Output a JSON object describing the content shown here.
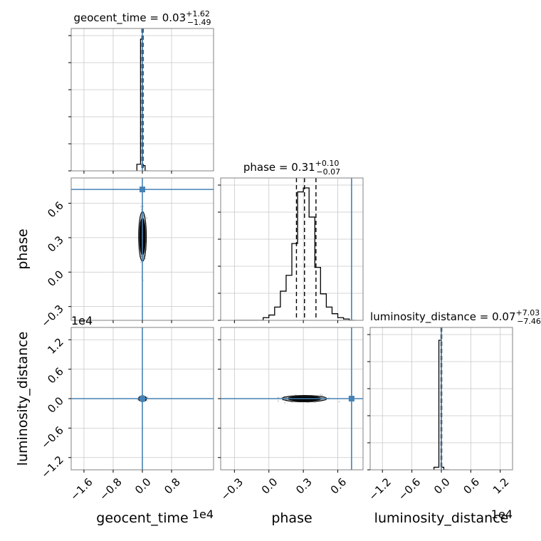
{
  "chart_data": {
    "type": "corner",
    "parameters": [
      "geocent_time",
      "phase",
      "luminosity_distance"
    ],
    "axis_labels": {
      "x": [
        "geocent_time",
        "phase",
        "luminosity_distance"
      ],
      "y": [
        "phase",
        "luminosity_distance"
      ]
    },
    "titles": [
      {
        "param": "geocent_time",
        "prefix": "geocent_time = ",
        "median": "0.03",
        "plus": "+1.62",
        "minus": "−1.49"
      },
      {
        "param": "phase",
        "prefix": "phase = ",
        "median": "0.31",
        "plus": "+0.10",
        "minus": "−0.07"
      },
      {
        "param": "luminosity_distance",
        "prefix": "luminosity_distance = ",
        "median": "0.07",
        "plus": "+7.03",
        "minus": "−7.46"
      }
    ],
    "ranges": {
      "geocent_time": [
        -1.95,
        1.95
      ],
      "phase": [
        -0.42,
        0.82
      ],
      "luminosity_distance": [
        -1.45,
        1.45
      ]
    },
    "offset_labels": {
      "geocent_time": "1e4",
      "luminosity_distance": "1e4"
    },
    "ticks": {
      "geocent_time": {
        "values": [
          -1.6,
          -0.8,
          0.0,
          0.8
        ],
        "labels": [
          "−1.6",
          "−0.8",
          "0.0",
          "0.8"
        ]
      },
      "phase": {
        "values": [
          -0.3,
          0.0,
          0.3,
          0.6
        ],
        "labels": [
          "−0.3",
          "0.0",
          "0.3",
          "0.6"
        ]
      },
      "luminosity_distance": {
        "values": [
          -1.2,
          -0.6,
          0.0,
          0.6,
          1.2
        ],
        "labels": [
          "−1.2",
          "−0.6",
          "0.0",
          "0.6",
          "1.2"
        ]
      }
    },
    "truths": {
      "geocent_time": 0.0,
      "phase": 0.72,
      "luminosity_distance": 0.0
    },
    "quantiles": {
      "geocent_time": [
        -0.012,
        0.003,
        0.019
      ],
      "phase": [
        0.24,
        0.31,
        0.41
      ],
      "luminosity_distance": [
        -0.007,
        0.0007,
        0.0077
      ]
    },
    "histograms": {
      "geocent_time": {
        "bin_edges": [
          -0.15,
          -0.05,
          0.0,
          0.075,
          0.15
        ],
        "counts": [
          0.05,
          1.0,
          0.04,
          0.0
        ]
      },
      "phase": {
        "bin_edges": [
          -0.3,
          -0.25,
          -0.2,
          -0.15,
          -0.1,
          -0.05,
          0.0,
          0.05,
          0.1,
          0.15,
          0.2,
          0.25,
          0.3,
          0.35,
          0.4,
          0.45,
          0.5,
          0.55,
          0.6,
          0.65,
          0.7,
          0.75
        ],
        "counts": [
          0.0,
          0.0,
          0.0,
          0.0,
          0.0,
          0.02,
          0.04,
          0.1,
          0.22,
          0.34,
          0.58,
          0.97,
          1.0,
          0.78,
          0.4,
          0.2,
          0.1,
          0.05,
          0.02,
          0.01,
          0.0
        ]
      },
      "luminosity_distance": {
        "bin_edges": [
          -0.15,
          -0.05,
          0.0,
          0.05,
          0.15
        ],
        "counts": [
          0.02,
          1.0,
          0.02,
          0.0
        ]
      }
    },
    "grid": true,
    "colors": {
      "truth": "#4682b4",
      "hist": "#000000",
      "scatter": "#9a9a9a",
      "frame": "#808080",
      "grid": "#c8c8c8"
    }
  }
}
